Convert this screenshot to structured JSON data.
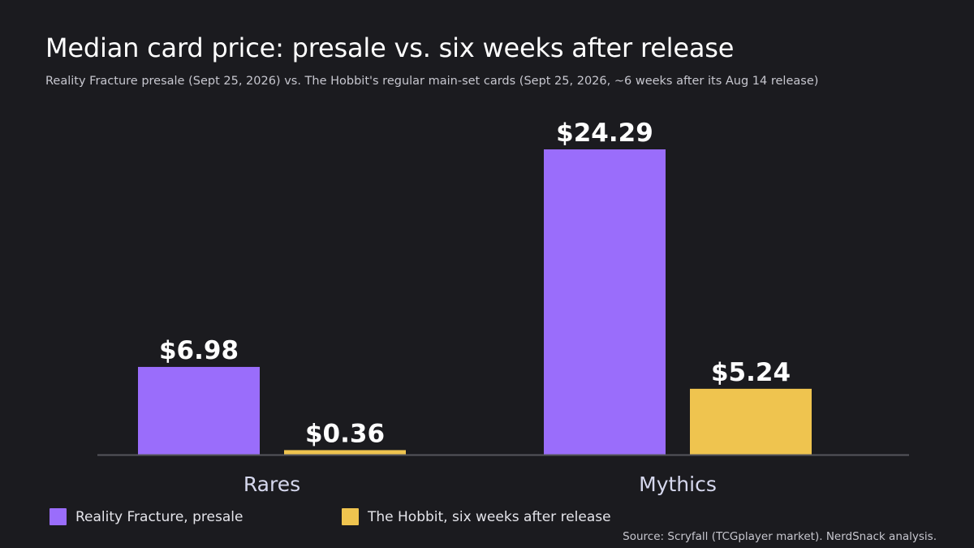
{
  "title": "Median card price: presale vs. six weeks after release",
  "subtitle": "Reality Fracture presale (Sept 25, 2026) vs. The Hobbit's regular main-set cards (Sept 25, 2026, ~6 weeks after its Aug 14 release)",
  "source": "Source: Scryfall (TCGplayer market). NerdSnack analysis.",
  "chart_data": {
    "type": "bar",
    "categories": [
      "Rares",
      "Mythics"
    ],
    "series": [
      {
        "name": "Reality Fracture, presale",
        "values": [
          6.98,
          24.29
        ],
        "labels": [
          "$6.98",
          "$24.29"
        ],
        "color": "#9a6dfb"
      },
      {
        "name": "The Hobbit, six weeks after release",
        "values": [
          0.36,
          5.24
        ],
        "labels": [
          "$0.36",
          "$5.24"
        ],
        "color": "#efc44f"
      }
    ],
    "ylim": [
      0,
      24.29
    ],
    "grid": false,
    "legend_position": "bottom-left",
    "colors": {
      "background": "#1b1b1f",
      "axis": "#55565c",
      "category_text": "#d6d8ee"
    }
  }
}
